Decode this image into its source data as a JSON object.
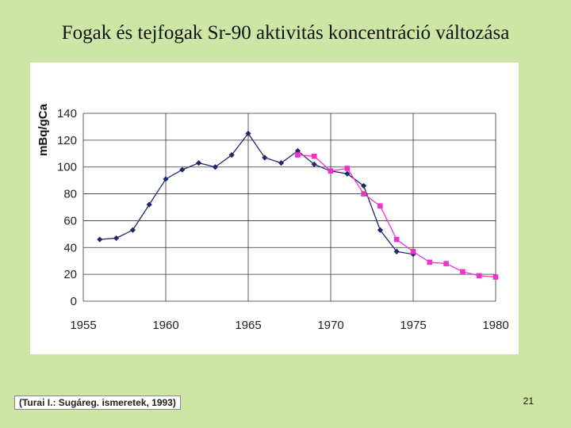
{
  "slide": {
    "title": "Fogak és tejfogak Sr-90 aktivitás koncentráció változása",
    "source": "(Turai I.: Sugáreg. ismeretek, 1993)",
    "page_number": "21"
  },
  "chart_data": {
    "type": "line",
    "title": "",
    "xlabel": "",
    "ylabel": "mBq/gCa",
    "xlim": [
      1955,
      1980
    ],
    "ylim": [
      0,
      140
    ],
    "xticks": [
      1955,
      1960,
      1965,
      1970,
      1975,
      1980
    ],
    "yticks": [
      0,
      20,
      40,
      60,
      80,
      100,
      120,
      140
    ],
    "grid": true,
    "series": [
      {
        "marker": "diamond",
        "color": "#1f2a6b",
        "x": [
          1956,
          1957,
          1958,
          1959,
          1960,
          1961,
          1962,
          1963,
          1964,
          1965,
          1966,
          1967,
          1968,
          1969,
          1970,
          1971,
          1972,
          1973,
          1974,
          1975
        ],
        "y": [
          46,
          47,
          53,
          72,
          91,
          98,
          103,
          100,
          109,
          125,
          107,
          103,
          112,
          102,
          97,
          95,
          86,
          53,
          37,
          35
        ]
      },
      {
        "marker": "square",
        "color": "#ee33cc",
        "x": [
          1968,
          1969,
          1970,
          1971,
          1972,
          1973,
          1974,
          1975,
          1976,
          1977,
          1978,
          1979,
          1980
        ],
        "y": [
          109,
          108,
          97,
          99,
          80,
          71,
          46,
          37,
          29,
          28,
          22,
          19,
          18
        ]
      }
    ]
  }
}
